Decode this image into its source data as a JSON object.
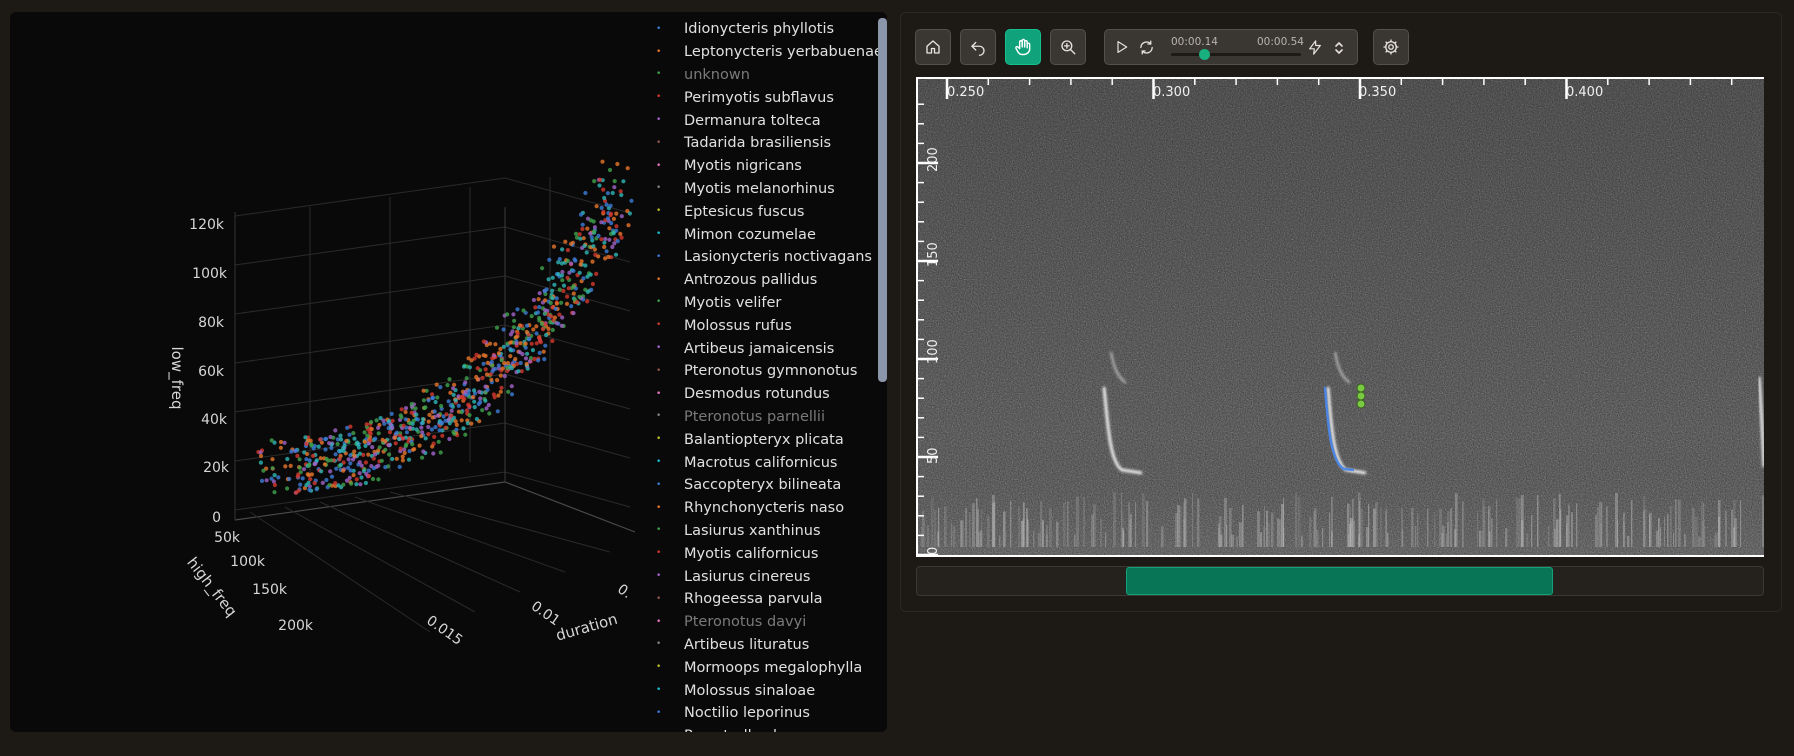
{
  "scatter3d": {
    "axes": {
      "low_freq": {
        "title": "low_freq",
        "ticks": [
          "0",
          "20k",
          "40k",
          "60k",
          "80k",
          "100k",
          "120k"
        ]
      },
      "high_freq": {
        "title": "high_freq",
        "ticks": [
          "50k",
          "100k",
          "150k",
          "200k"
        ]
      },
      "duration": {
        "title": "duration",
        "ticks": [
          "0.015",
          "0.01",
          "0."
        ]
      }
    },
    "colors": {
      "blue": "#3b7dd8",
      "orange": "#e8752a",
      "green": "#3fa34d",
      "red": "#d33a2f",
      "purple": "#a064c9",
      "teal": "#2fb6b6"
    }
  },
  "legend": {
    "items": [
      {
        "label": "Idionycteris phyllotis",
        "color": "#3b7dd8",
        "hidden": false
      },
      {
        "label": "Leptonycteris yerbabuenae",
        "color": "#e8752a",
        "hidden": false
      },
      {
        "label": "unknown",
        "color": "#3fa34d",
        "hidden": true
      },
      {
        "label": "Perimyotis subflavus",
        "color": "#d33a2f",
        "hidden": false
      },
      {
        "label": "Dermanura tolteca",
        "color": "#a064c9",
        "hidden": false
      },
      {
        "label": "Tadarida brasiliensis",
        "color": "#8c564b",
        "hidden": false
      },
      {
        "label": "Myotis nigricans",
        "color": "#e377c2",
        "hidden": false
      },
      {
        "label": "Myotis melanorhinus",
        "color": "#7f7f7f",
        "hidden": false
      },
      {
        "label": "Eptesicus fuscus",
        "color": "#bcbd22",
        "hidden": false
      },
      {
        "label": "Mimon cozumelae",
        "color": "#17becf",
        "hidden": false
      },
      {
        "label": "Lasionycteris noctivagans",
        "color": "#3b7dd8",
        "hidden": false
      },
      {
        "label": "Antrozous pallidus",
        "color": "#e8752a",
        "hidden": false
      },
      {
        "label": "Myotis velifer",
        "color": "#3fa34d",
        "hidden": false
      },
      {
        "label": "Molossus rufus",
        "color": "#d33a2f",
        "hidden": false
      },
      {
        "label": "Artibeus jamaicensis",
        "color": "#a064c9",
        "hidden": false
      },
      {
        "label": "Pteronotus gymnonotus",
        "color": "#8c564b",
        "hidden": false
      },
      {
        "label": "Desmodus rotundus",
        "color": "#e377c2",
        "hidden": false
      },
      {
        "label": "Pteronotus parnellii",
        "color": "#7f7f7f",
        "hidden": true
      },
      {
        "label": "Balantiopteryx plicata",
        "color": "#bcbd22",
        "hidden": false
      },
      {
        "label": "Macrotus californicus",
        "color": "#17becf",
        "hidden": false
      },
      {
        "label": "Saccopteryx bilineata",
        "color": "#3b7dd8",
        "hidden": false
      },
      {
        "label": "Rhynchonycteris naso",
        "color": "#e8752a",
        "hidden": false
      },
      {
        "label": "Lasiurus xanthinus",
        "color": "#3fa34d",
        "hidden": false
      },
      {
        "label": "Myotis californicus",
        "color": "#d33a2f",
        "hidden": false
      },
      {
        "label": "Lasiurus cinereus",
        "color": "#a064c9",
        "hidden": false
      },
      {
        "label": "Rhogeessa parvula",
        "color": "#8c564b",
        "hidden": false
      },
      {
        "label": "Pteronotus davyi",
        "color": "#e377c2",
        "hidden": true
      },
      {
        "label": "Artibeus lituratus",
        "color": "#7f7f7f",
        "hidden": false
      },
      {
        "label": "Mormoops megalophylla",
        "color": "#bcbd22",
        "hidden": false
      },
      {
        "label": "Molossus sinaloae",
        "color": "#17becf",
        "hidden": false
      },
      {
        "label": "Noctilio leporinus",
        "color": "#3b7dd8",
        "hidden": false
      },
      {
        "label": "Parastrellus hesperus",
        "color": "#e8752a",
        "hidden": false
      }
    ]
  },
  "toolbar": {
    "buttons": [
      {
        "name": "home-button",
        "icon": "home-icon"
      },
      {
        "name": "undo-button",
        "icon": "undo-icon"
      },
      {
        "name": "pan-button",
        "icon": "hand-icon",
        "active": true
      },
      {
        "name": "zoom-button",
        "icon": "zoom-in-icon"
      }
    ],
    "player": {
      "current_time": "00:00.14",
      "total_time": "00:00.54",
      "progress": 0.26
    },
    "settings_icon": "gear-icon"
  },
  "spectrogram": {
    "x_ticks": [
      "0.250",
      "0.300",
      "0.350",
      "0.400"
    ],
    "y_ticks": [
      "0",
      "50",
      "100",
      "150",
      "200"
    ],
    "accent_color": "#4a86e8",
    "marker_color": "#7ac943"
  },
  "minimap": {
    "window_start": 0.247,
    "window_end": 0.752,
    "color": "#087556"
  }
}
